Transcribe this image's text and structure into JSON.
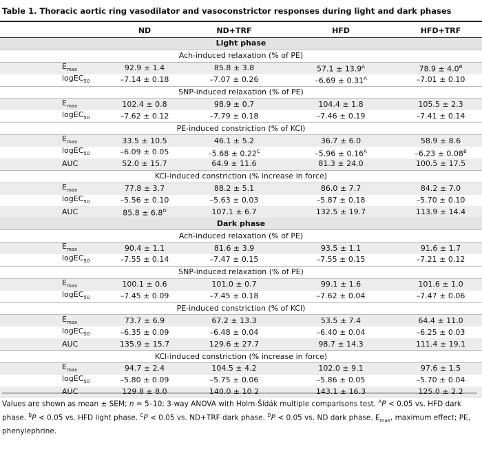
{
  "title": "Table 1. Thoracic aortic ring vasodilator and vasoconstrictor responses during light and dark phases",
  "columns": [
    "ND",
    "ND+TRF",
    "HFD",
    "HFD+TRF"
  ],
  "sections": [
    {
      "title": "Light phase",
      "groups": [
        {
          "title": "Ach-induced relaxation (% of PE)",
          "rows": [
            {
              "label": "E",
              "sub": "max",
              "cells": [
                "92.9 ± 1.4",
                "85.8 ± 3.8",
                {
                  "text": "57.1 ± 13.9",
                  "sup": "A"
                },
                {
                  "text": "78.9 ± 4.0",
                  "sup": "B"
                }
              ]
            },
            {
              "label": "logEC",
              "sub": "50",
              "cells": [
                "–7.14 ± 0.18",
                "–7.07 ± 0.26",
                {
                  "text": "–6.69 ± 0.31",
                  "sup": "A"
                },
                "–7.01 ± 0.10"
              ]
            }
          ]
        },
        {
          "title": "SNP-induced relaxation (% of PE)",
          "rows": [
            {
              "label": "E",
              "sub": "max",
              "cells": [
                "102.4 ± 0.8",
                "98.9 ± 0.7",
                "104.4 ± 1.8",
                "105.5 ± 2.3"
              ]
            },
            {
              "label": "logEC",
              "sub": "50",
              "cells": [
                "–7.62 ± 0.12",
                "–7.79 ± 0.18",
                "–7.46 ± 0.19",
                "–7.41 ± 0.14"
              ]
            }
          ]
        },
        {
          "title": "PE-induced constriction (% of KCl)",
          "rows": [
            {
              "label": "E",
              "sub": "max",
              "cells": [
                "33.5 ± 10.5",
                "46.1 ± 5.2",
                "36.7 ± 6.0",
                "58.9 ± 8.6"
              ]
            },
            {
              "label": "logEC",
              "sub": "50",
              "cells": [
                "–6.09 ± 0.05",
                {
                  "text": "–5.68 ± 0.22",
                  "sup": "C"
                },
                {
                  "text": "–5.96 ± 0.16",
                  "sup": "A"
                },
                {
                  "text": "–6.23 ± 0.08",
                  "sup": "B"
                }
              ]
            },
            {
              "label": "AUC",
              "cells": [
                "52.0 ± 15.7",
                "64.9 ± 11.6",
                "81.3 ± 24.0",
                "100.5 ± 17.5"
              ]
            }
          ]
        },
        {
          "title": "KCl-induced constriction (% increase in force)",
          "rows": [
            {
              "label": "E",
              "sub": "max",
              "cells": [
                "77.8 ± 3.7",
                "88.2 ± 5.1",
                "86.0 ± 7.7",
                "84.2 ± 7.0"
              ]
            },
            {
              "label": "logEC",
              "sub": "50",
              "cells": [
                "–5.56 ± 0.10",
                "–5.63 ± 0.03",
                "–5.87 ± 0.18",
                "–5.70 ± 0.10"
              ]
            },
            {
              "label": "AUC",
              "cells": [
                {
                  "text": "85.8 ± 6.8",
                  "sup": "D"
                },
                "107.1 ± 6.7",
                "132.5 ± 19.7",
                "113.9 ± 14.4"
              ]
            }
          ]
        }
      ]
    },
    {
      "title": "Dark phase",
      "groups": [
        {
          "title": "Ach-induced relaxation (% of PE)",
          "rows": [
            {
              "label": "E",
              "sub": "max",
              "cells": [
                "90.4 ± 1.1",
                "81.6 ± 3.9",
                "93.5 ± 1.1",
                "91.6 ± 1.7"
              ]
            },
            {
              "label": "logEC",
              "sub": "50",
              "cells": [
                "–7.55 ± 0.14",
                "–7.47 ± 0.15",
                "–7.55 ± 0.15",
                "–7.21 ± 0.12"
              ]
            }
          ]
        },
        {
          "title": "SNP-induced relaxation (% of PE)",
          "rows": [
            {
              "label": "E",
              "sub": "max",
              "cells": [
                "100.1 ± 0.6",
                "101.0 ± 0.7",
                "99.1 ± 1.6",
                "101.6 ± 1.0"
              ]
            },
            {
              "label": "logEC",
              "sub": "50",
              "cells": [
                "–7.45 ± 0.09",
                "–7.45 ± 0.18",
                "–7.62 ± 0.04",
                "–7.47 ± 0.06"
              ]
            }
          ]
        },
        {
          "title": "PE-induced constriction (% of KCl)",
          "rows": [
            {
              "label": "E",
              "sub": "max",
              "cells": [
                "73.7 ± 6.9",
                "67.2 ± 13.3",
                "53.5 ± 7.4",
                "64.4 ± 11.0"
              ]
            },
            {
              "label": "logEC",
              "sub": "50",
              "cells": [
                "–6.35 ± 0.09",
                "–6.48 ± 0.04",
                "–6.40 ± 0.04",
                "–6.25 ± 0.03"
              ]
            },
            {
              "label": "AUC",
              "cells": [
                "135.9 ± 15.7",
                "129.6 ± 27.7",
                "98.7 ± 14.3",
                "111.4 ± 19.1"
              ]
            }
          ]
        },
        {
          "title": "KCl-induced constriction (% increase in force)",
          "rows": [
            {
              "label": "E",
              "sub": "max",
              "cells": [
                "94.7 ± 2.4",
                "104.5 ± 4.2",
                "102.0 ± 9.1",
                "97.6 ± 1.5"
              ]
            },
            {
              "label": "logEC",
              "sub": "50",
              "cells": [
                "–5.80 ± 0.09",
                "–5.75 ± 0.06",
                "–5.86 ± 0.05",
                "–5.70 ± 0.04"
              ]
            },
            {
              "label": "AUC",
              "cells": [
                "129.8 ± 8.0",
                "140.0 ± 10.2",
                "143.1 ± 16.3",
                "125.0 ± 2.2"
              ]
            }
          ]
        }
      ]
    }
  ],
  "footnote": [
    "Values are shown as mean ± SEM; ",
    "n",
    " = 5–10; 3-way ANOVA with Holm-Šídák multiple comparisons test. ",
    "A",
    "P",
    " < 0.05 vs. HFD dark phase. ",
    "B",
    "P",
    " < 0.05 vs. HFD light phase. ",
    "C",
    "P",
    " < 0.05 vs. ND+TRF dark phase. ",
    "D",
    "P",
    " < 0.05 vs. ND dark phase. E",
    "max",
    ", maximum effect; PE, phenylephrine."
  ]
}
